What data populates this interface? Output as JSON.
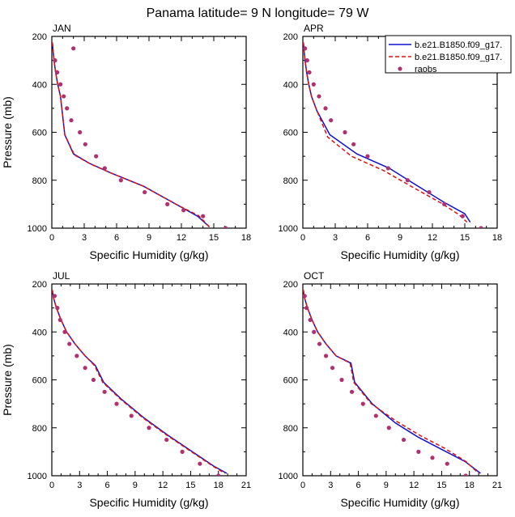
{
  "title": "Panama  latitude= 9 N longitude= 79 W",
  "colors": {
    "model1": "#1010d0",
    "model2": "#e01010",
    "raobs": "#b03070"
  },
  "legend": {
    "placement": "top-right of APR panel",
    "entries": [
      {
        "label": "b.e21.B1850.f09_g17.",
        "style": "solid"
      },
      {
        "label": "b.e21.B1850.f09_g17.",
        "style": "dashed"
      },
      {
        "label": "raobs",
        "style": "marker"
      }
    ]
  },
  "chart_data": [
    {
      "type": "line",
      "panel_label": "JAN",
      "xlabel": "Specific Humidity (g/kg)",
      "ylabel": "Pressure (mb)",
      "xlim": [
        0,
        18
      ],
      "ylim": [
        1000,
        200
      ],
      "xticks": [
        0,
        3,
        6,
        9,
        12,
        15,
        18
      ],
      "yticks": [
        200,
        400,
        600,
        800,
        1000
      ],
      "y_inverted": true,
      "series": [
        {
          "name": "b.e21.B1850.f09_g17.",
          "style": "solid",
          "x": [
            0.05,
            0.1,
            0.2,
            0.35,
            0.55,
            0.8,
            1.2,
            2.0,
            3.5,
            5.5,
            8.5,
            11.5,
            13.5,
            14.6
          ],
          "y": [
            225,
            250,
            300,
            350,
            400,
            450,
            610,
            690,
            730,
            770,
            825,
            900,
            950,
            995
          ]
        },
        {
          "name": "b.e21.B1850.f09_g17.",
          "style": "dashed",
          "x": [
            0.05,
            0.1,
            0.2,
            0.35,
            0.55,
            0.8,
            1.2,
            2.1,
            3.6,
            5.6,
            8.5,
            11.5,
            13.6,
            14.6
          ],
          "y": [
            225,
            250,
            300,
            350,
            400,
            450,
            610,
            695,
            733,
            772,
            825,
            900,
            948,
            995
          ]
        },
        {
          "name": "raobs",
          "style": "marker",
          "x": [
            2.0,
            0.3,
            0.5,
            0.8,
            1.1,
            1.4,
            1.8,
            2.6,
            3.1,
            4.1,
            4.9,
            6.4,
            8.6,
            10.7,
            12.2,
            14.0,
            16.1
          ],
          "y": [
            250,
            300,
            350,
            400,
            450,
            500,
            550,
            600,
            650,
            700,
            750,
            800,
            850,
            900,
            925,
            950,
            1000
          ]
        }
      ]
    },
    {
      "type": "line",
      "panel_label": "APR",
      "xlabel": "Specific Humidity (g/kg)",
      "ylabel": "",
      "xlim": [
        0,
        18
      ],
      "ylim": [
        1000,
        200
      ],
      "xticks": [
        0,
        3,
        6,
        9,
        12,
        15,
        18
      ],
      "yticks": [
        200,
        400,
        600,
        800,
        1000
      ],
      "y_inverted": true,
      "series": [
        {
          "name": "b.e21.B1850.f09_g17.",
          "style": "solid",
          "x": [
            0.05,
            0.1,
            0.2,
            0.35,
            0.55,
            0.8,
            1.3,
            2.5,
            5.0,
            8.0,
            10.5,
            13.0,
            15.0,
            15.5
          ],
          "y": [
            225,
            250,
            300,
            350,
            400,
            450,
            510,
            610,
            690,
            750,
            820,
            890,
            940,
            975
          ]
        },
        {
          "name": "b.e21.B1850.f09_g17.",
          "style": "dashed",
          "x": [
            0.05,
            0.1,
            0.2,
            0.35,
            0.55,
            0.8,
            1.3,
            2.3,
            4.5,
            7.5,
            10.2,
            12.8,
            14.5,
            15.2
          ],
          "y": [
            225,
            250,
            300,
            350,
            400,
            450,
            510,
            620,
            700,
            760,
            830,
            895,
            945,
            975
          ]
        },
        {
          "name": "raobs",
          "style": "marker",
          "x": [
            0.2,
            0.4,
            0.6,
            1.0,
            1.5,
            2.1,
            2.6,
            3.9,
            4.7,
            6.0,
            7.9,
            9.7,
            11.7,
            13.1,
            14.8,
            16.5
          ],
          "y": [
            250,
            300,
            350,
            400,
            450,
            500,
            550,
            600,
            650,
            700,
            750,
            800,
            850,
            900,
            950,
            1000
          ]
        }
      ]
    },
    {
      "type": "line",
      "panel_label": "JUL",
      "xlabel": "Specific Humidity (g/kg)",
      "ylabel": "Pressure (mb)",
      "xlim": [
        0,
        21
      ],
      "ylim": [
        1000,
        200
      ],
      "xticks": [
        0,
        3,
        6,
        9,
        12,
        15,
        18,
        21
      ],
      "yticks": [
        200,
        400,
        600,
        800,
        1000
      ],
      "y_inverted": true,
      "series": [
        {
          "name": "b.e21.B1850.f09_g17.",
          "style": "solid",
          "x": [
            0.05,
            0.2,
            0.5,
            1.0,
            1.6,
            2.5,
            3.6,
            4.7,
            5.6,
            7.5,
            10.0,
            12.5,
            15.0,
            17.5,
            18.9
          ],
          "y": [
            225,
            260,
            300,
            350,
            400,
            450,
            500,
            540,
            610,
            680,
            760,
            830,
            895,
            960,
            990
          ]
        },
        {
          "name": "b.e21.B1850.f09_g17.",
          "style": "dashed",
          "x": [
            0.05,
            0.2,
            0.5,
            1.0,
            1.6,
            2.5,
            3.6,
            4.6,
            5.5,
            7.4,
            9.9,
            12.4,
            14.9,
            17.4,
            18.7
          ],
          "y": [
            225,
            260,
            300,
            350,
            400,
            450,
            500,
            540,
            610,
            680,
            760,
            830,
            895,
            960,
            990
          ]
        },
        {
          "name": "raobs",
          "style": "marker",
          "x": [
            0.3,
            0.6,
            0.9,
            1.4,
            1.9,
            2.7,
            3.6,
            4.5,
            5.7,
            7.0,
            8.6,
            10.5,
            12.4,
            14.1,
            16.0,
            18.0
          ],
          "y": [
            250,
            300,
            350,
            400,
            450,
            500,
            550,
            600,
            650,
            700,
            750,
            800,
            850,
            900,
            950,
            1000
          ]
        }
      ]
    },
    {
      "type": "line",
      "panel_label": "OCT",
      "xlabel": "Specific Humidity (g/kg)",
      "ylabel": "",
      "xlim": [
        0,
        21
      ],
      "ylim": [
        1000,
        200
      ],
      "xticks": [
        0,
        3,
        6,
        9,
        12,
        15,
        18,
        21
      ],
      "yticks": [
        200,
        400,
        600,
        800,
        1000
      ],
      "y_inverted": true,
      "series": [
        {
          "name": "b.e21.B1850.f09_g17.",
          "style": "solid",
          "x": [
            0.05,
            0.2,
            0.5,
            1.0,
            1.6,
            2.5,
            3.6,
            5.2,
            5.6,
            7.5,
            10.0,
            12.5,
            15.0,
            17.5,
            19.2
          ],
          "y": [
            225,
            260,
            300,
            350,
            400,
            450,
            500,
            530,
            610,
            700,
            780,
            840,
            890,
            940,
            990
          ]
        },
        {
          "name": "b.e21.B1850.f09_g17.",
          "style": "dashed",
          "x": [
            0.05,
            0.2,
            0.5,
            1.0,
            1.6,
            2.5,
            3.6,
            5.1,
            5.5,
            7.4,
            10.0,
            12.8,
            15.3,
            17.6,
            19.0
          ],
          "y": [
            225,
            260,
            300,
            350,
            400,
            450,
            500,
            530,
            610,
            700,
            770,
            835,
            885,
            940,
            990
          ]
        },
        {
          "name": "raobs",
          "style": "marker",
          "x": [
            0.2,
            0.4,
            0.8,
            1.2,
            1.8,
            2.5,
            3.2,
            4.2,
            5.3,
            6.5,
            7.9,
            9.3,
            10.9,
            12.5,
            14.0,
            15.6,
            17.6
          ],
          "y": [
            250,
            300,
            350,
            400,
            450,
            500,
            550,
            600,
            650,
            700,
            750,
            800,
            850,
            900,
            925,
            950,
            1000
          ]
        }
      ]
    }
  ]
}
